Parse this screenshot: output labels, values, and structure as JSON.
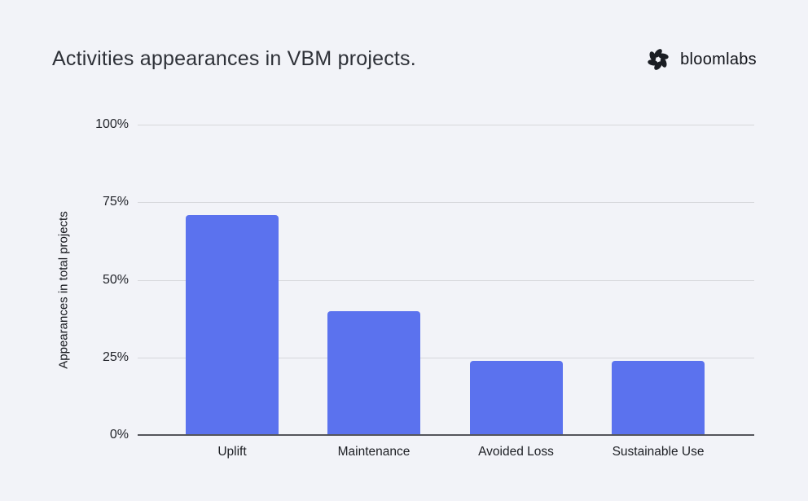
{
  "header": {
    "title": "Activities appearances in VBM projects.",
    "brand": {
      "name": "bloomlabs",
      "icon": "pinwheel-flower-icon"
    }
  },
  "chart_data": {
    "type": "bar",
    "title": "Activities appearances in VBM projects.",
    "categories": [
      "Uplift",
      "Maintenance",
      "Avoided Loss",
      "Sustainable Use"
    ],
    "values": [
      71,
      40,
      24,
      24
    ],
    "xlabel": "",
    "ylabel": "Appearances in total projects",
    "ylim": [
      0,
      100
    ],
    "yticks": [
      {
        "value": 0,
        "label": "0%"
      },
      {
        "value": 25,
        "label": "25%"
      },
      {
        "value": 50,
        "label": "50%"
      },
      {
        "value": 75,
        "label": "75%"
      },
      {
        "value": 100,
        "label": "100%"
      }
    ],
    "grid": true,
    "legend": "none"
  },
  "colors": {
    "background": "#f2f3f8",
    "bar": "#5b72ee",
    "gridline": "#d6d7db",
    "axis_line": "#54555b",
    "title_text": "#2e3138",
    "tick_text": "#23252b",
    "brand_text": "#101218",
    "brand_icon": "#1a1d23"
  }
}
